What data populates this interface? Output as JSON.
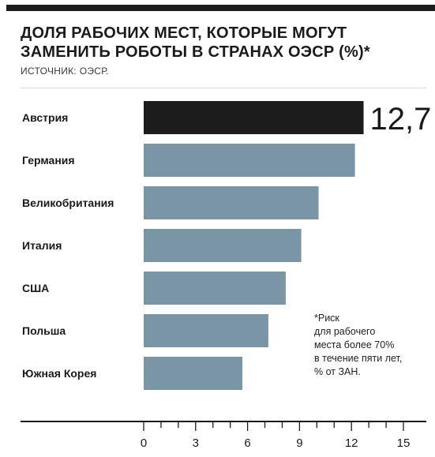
{
  "header": {
    "title": "ДОЛЯ РАБОЧИХ МЕСТ, КОТОРЫЕ МОГУТ ЗАМЕНИТЬ РОБОТЫ В СТРАНАХ ОЭСР (%)*",
    "source": "ИСТОЧНИК: ОЭСР."
  },
  "footnote": "*Риск\n для рабочего\n места более 70%\n в течение пяти лет,\n % от ЗАН.",
  "chart_data": {
    "type": "bar",
    "orientation": "horizontal",
    "title": "ДОЛЯ РАБОЧИХ МЕСТ, КОТОРЫЕ МОГУТ ЗАМЕНИТЬ РОБОТЫ В СТРАНАХ ОЭСР (%)*",
    "categories": [
      "Австрия",
      "Германия",
      "Великобритания",
      "Италия",
      "США",
      "Польша",
      "Южная Корея"
    ],
    "values": [
      12.7,
      12.2,
      10.1,
      9.1,
      8.2,
      7.2,
      5.7
    ],
    "highlight_index": 0,
    "highlight_label": "12,7",
    "xlim": [
      0,
      15
    ],
    "xticks": [
      0,
      3,
      6,
      9,
      12,
      15
    ],
    "xticks_minor_step": 1,
    "grid": false,
    "colors": {
      "bar": "#7a95a6",
      "highlight": "#1c1c1c",
      "axis": "#1a1a1a"
    }
  }
}
